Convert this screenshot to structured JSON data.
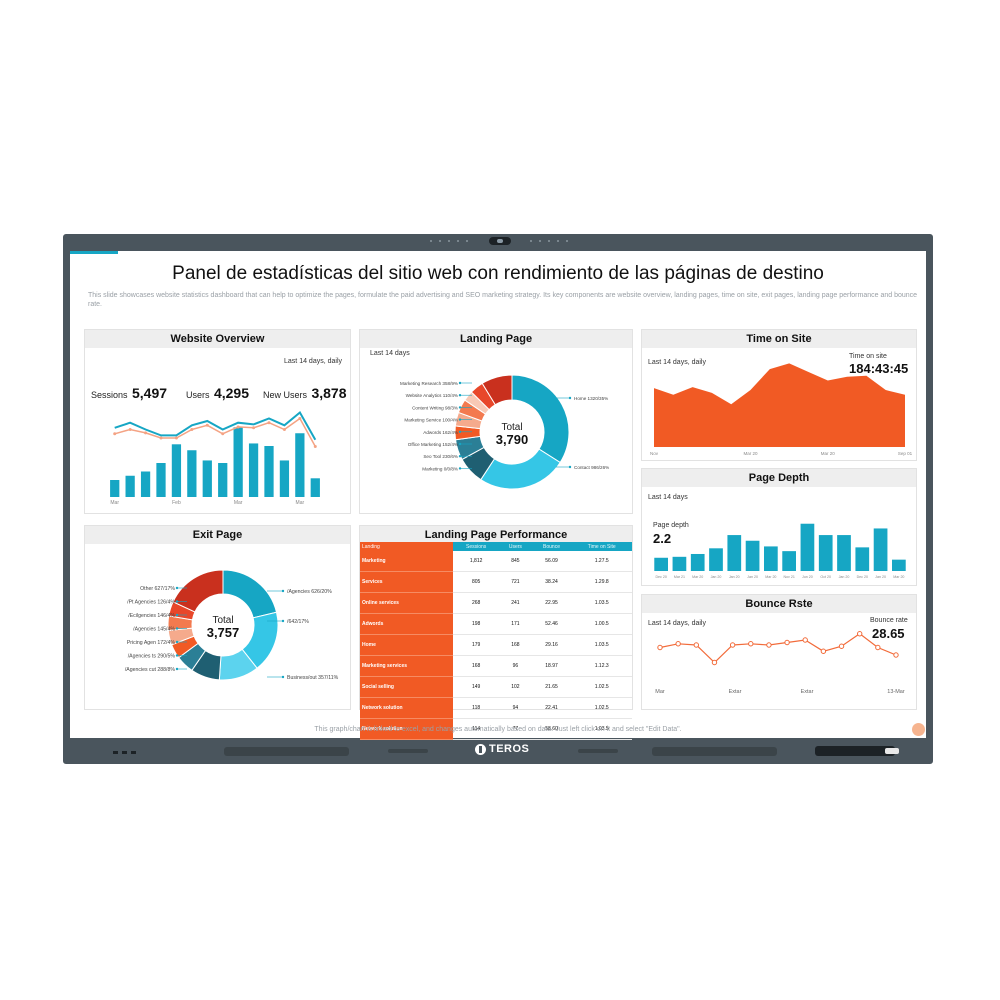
{
  "page": {
    "title": "Panel de estadísticas del sitio web con rendimiento de las páginas de destino",
    "subtitle": "This slide showcases website statistics dashboard that can help to optimize the pages, formulate the paid advertising and SEO marketing strategy. Its key components are website overview, landing pages, time on site, exit pages, landing page performance and bounce rate.",
    "footer_note": "This graph/chart is linked to excel, and changes automatically based on data. Just left click on it and select \"Edit Data\".",
    "brand": "TEROS"
  },
  "colors": {
    "accent_blue": "#16a6c4",
    "accent_orange": "#f15a24",
    "bezel": "#4a555d"
  },
  "website_overview": {
    "header": "Website Overview",
    "period": "Last 14 days, daily",
    "kpis": [
      {
        "label": "Sessions",
        "value": "5,497"
      },
      {
        "label": "Users",
        "value": "4,295"
      },
      {
        "label": "New Users",
        "value": "3,878"
      }
    ],
    "x_ticks": [
      "Mar",
      "Feb",
      "Mar",
      "Mar"
    ],
    "chart_data": {
      "type": "bar",
      "bars": [
        2,
        2.5,
        3,
        4,
        6.2,
        5.5,
        4.3,
        4,
        8.2,
        6.3,
        6,
        4.3,
        7.5,
        2.2
      ],
      "line_blue": [
        5.2,
        5.8,
        5.0,
        4.3,
        4.3,
        5.5,
        6.0,
        5.0,
        5.8,
        5.6,
        6.3,
        5.5,
        7.0,
        3.8
      ],
      "line_orange": [
        4.5,
        5.0,
        4.6,
        4.0,
        4.0,
        5.0,
        5.5,
        4.5,
        5.3,
        5.2,
        5.8,
        5.0,
        6.3,
        3.0
      ],
      "ylim": [
        0,
        10
      ]
    }
  },
  "landing_page": {
    "header": "Landing Page",
    "period": "Last 14 days",
    "total_label": "Total",
    "total_value": "3,790",
    "left_labels": [
      "Marketing Research 358/9%",
      "Website Analytics 110/4%",
      "Content Writing 98/3%",
      "Marketing Service 100/4%",
      "Adwords 162/4%",
      "Office Marketing 152/4%",
      "Seo Tool 230/6%",
      "Marketing 0/0/8%"
    ],
    "right_labels": [
      "Home 1320/35%",
      "Contact 986/26%"
    ],
    "chart_data": {
      "type": "pie",
      "slices": [
        {
          "label": "Home",
          "value": 35,
          "color": "#16a6c4"
        },
        {
          "label": "Contact",
          "value": 26,
          "color": "#35c6e6"
        },
        {
          "label": "Marketing",
          "value": 8,
          "color": "#1f5f72"
        },
        {
          "label": "Seo Tool",
          "value": 6,
          "color": "#2b7f96"
        },
        {
          "label": "Office Marketing",
          "value": 4,
          "color": "#f15a24"
        },
        {
          "label": "Adwords",
          "value": 4,
          "color": "#f5aa8c"
        },
        {
          "label": "Marketing Service",
          "value": 4,
          "color": "#f37a4f"
        },
        {
          "label": "Content Writing",
          "value": 3,
          "color": "#f8c9b5"
        },
        {
          "label": "Website Analytics",
          "value": 4,
          "color": "#e8472a"
        },
        {
          "label": "Marketing Research",
          "value": 9,
          "color": "#c9301e"
        }
      ]
    }
  },
  "time_on_site": {
    "header": "Time on Site",
    "period": "Last 14 days, daily",
    "metric_label": "Time on site",
    "metric_value": "184:43:45",
    "x_ticks": [
      "Nov",
      "Mar 20",
      "Mar 20",
      "Sep 01"
    ],
    "chart_data": {
      "type": "area",
      "values": [
        62,
        55,
        63,
        57,
        45,
        60,
        82,
        88,
        79,
        70,
        74,
        75,
        60,
        55
      ],
      "ylim": [
        0,
        100
      ]
    }
  },
  "exit_page": {
    "header": "Exit Page",
    "total_label": "Total",
    "total_value": "3,757",
    "left_labels": [
      "Other 627/17%",
      "/Pt Agencies 126/4%",
      "/Ecilgencies 146/4%",
      "/Agencies 145/4%",
      "Pricing Agen 172/4%",
      "/Agencies ts 290/5%",
      "/Agencies cut 288/8%"
    ],
    "right_labels": [
      "/Agencies 626/20%",
      "/642/17%",
      "Business/out 357/11%"
    ],
    "chart_data": {
      "type": "pie",
      "slices": [
        {
          "label": "/Agencies",
          "value": 20,
          "color": "#16a6c4"
        },
        {
          "label": "/642",
          "value": 17,
          "color": "#35c6e6"
        },
        {
          "label": "Business/out",
          "value": 11,
          "color": "#5cd3ee"
        },
        {
          "label": "/Agencies cut",
          "value": 8,
          "color": "#1f5f72"
        },
        {
          "label": "/Agencies ts",
          "value": 5,
          "color": "#2b7f96"
        },
        {
          "label": "Pricing Agen",
          "value": 4,
          "color": "#f15a24"
        },
        {
          "label": "/Agencies",
          "value": 4,
          "color": "#f5aa8c"
        },
        {
          "label": "/Ecilgencies",
          "value": 4,
          "color": "#f37a4f"
        },
        {
          "label": "/Pt Agencies",
          "value": 4,
          "color": "#e8472a"
        },
        {
          "label": "Other",
          "value": 17,
          "color": "#c9301e"
        }
      ]
    }
  },
  "landing_page_performance": {
    "header": "Landing Page Performance",
    "columns": [
      "Landing",
      "Sessions",
      "Users",
      "Bounce",
      "Time on Site"
    ],
    "rows": [
      [
        "Marketing",
        "1,812",
        "845",
        "56.09",
        "1.27.5"
      ],
      [
        "Services",
        "805",
        "721",
        "38.24",
        "1.29.8"
      ],
      [
        "Online services",
        "268",
        "241",
        "22.95",
        "1.03.5"
      ],
      [
        "Adwords",
        "198",
        "171",
        "52.46",
        "1.00.5"
      ],
      [
        "Home",
        "179",
        "168",
        "29.16",
        "1.03.5"
      ],
      [
        "Marketing services",
        "168",
        "96",
        "18.97",
        "1.12.3"
      ],
      [
        "Social selling",
        "149",
        "102",
        "21.65",
        "1.02.5"
      ],
      [
        "Network solution",
        "118",
        "94",
        "22.41",
        "1.02.5"
      ],
      [
        "Network solution",
        "114",
        "77",
        "58.60",
        "1.03.5"
      ]
    ]
  },
  "page_depth": {
    "header": "Page Depth",
    "period": "Last 14 days",
    "metric_label": "Page depth",
    "metric_value": "2.2",
    "x_ticks": [
      "Dec 20",
      "Mar 21",
      "Mar 20",
      "Jan 20",
      "Jan 20",
      "Jan 20",
      "Mar 20",
      "Nov 21",
      "Jun 20",
      "Oct 20",
      "Jan 20",
      "Dec 20",
      "Jan 20",
      "Mar 20"
    ],
    "chart_data": {
      "type": "bar",
      "values": [
        1.4,
        1.5,
        1.8,
        2.4,
        3.8,
        3.2,
        2.6,
        2.1,
        5.0,
        3.8,
        3.8,
        2.5,
        4.5,
        1.2
      ],
      "ylim": [
        0,
        5.5
      ]
    }
  },
  "bounce_rate": {
    "header": "Bounce Rste",
    "period": "Last 14 days, daily",
    "metric_label": "Bounce rate",
    "metric_value": "28.65",
    "x_ticks": [
      "Mar",
      "Extar",
      "Extar",
      "13-Mar"
    ],
    "chart_data": {
      "type": "line",
      "values": [
        28.2,
        28.5,
        28.4,
        27.0,
        28.4,
        28.5,
        28.4,
        28.6,
        28.8,
        27.9,
        28.3,
        29.3,
        28.2,
        27.6
      ],
      "ylim": [
        26,
        30
      ]
    }
  }
}
